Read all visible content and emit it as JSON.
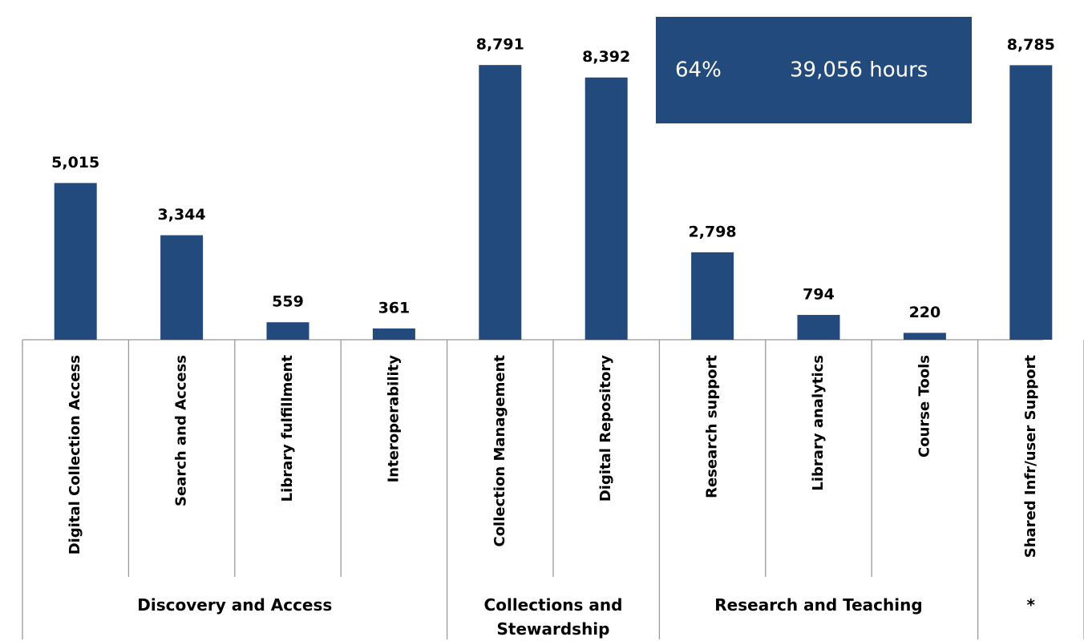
{
  "chart_data": {
    "type": "bar",
    "categories": [
      "Digital Collection Access",
      "Search and Access",
      "Library fulfillment",
      "Interoperability",
      "Collection Management",
      "Digital Repository",
      "Research support",
      "Library analytics",
      "Course Tools",
      "Shared Infr/user Support"
    ],
    "values": [
      5015,
      3344,
      559,
      361,
      8791,
      8392,
      2798,
      794,
      220,
      8785
    ],
    "value_labels": [
      "5,015",
      "3,344",
      "559",
      "361",
      "8,791",
      "8,392",
      "2,798",
      "794",
      "220",
      "8,785"
    ],
    "groups": [
      {
        "name": "Discovery and Access",
        "size": 4
      },
      {
        "name": "Collections and Stewardship",
        "size": 2
      },
      {
        "name": "Research and Teaching",
        "size": 3
      },
      {
        "name": "*",
        "size": 1
      }
    ],
    "annotations": [
      "64%",
      "39,056 hours"
    ],
    "color": "#234a7c",
    "ylim": [
      0,
      10000
    ]
  }
}
